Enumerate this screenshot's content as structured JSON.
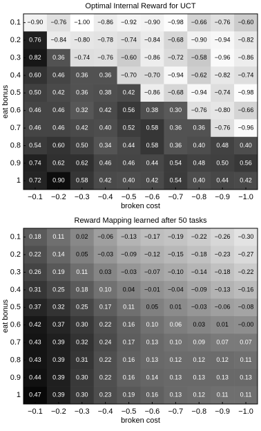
{
  "chart_data": [
    {
      "type": "heatmap",
      "title": "Optimal Internal Reward for UCT",
      "xlabel": "broken cost",
      "ylabel": "eat bonus",
      "categories": [
        "−0.1",
        "−0.2",
        "−0.3",
        "−0.4",
        "−0.5",
        "−0.6",
        "−0.7",
        "−0.8",
        "−0.9",
        "−1.0"
      ],
      "y_categories": [
        "0.1",
        "0.2",
        "0.3",
        "0.4",
        "0.5",
        "0.6",
        "0.7",
        "0.8",
        "0.9",
        "1"
      ],
      "clim": [
        -1,
        1
      ],
      "values": [
        [
          -0.9,
          -0.76,
          -1.0,
          -0.86,
          -0.92,
          -0.9,
          -0.98,
          -0.66,
          -0.76,
          -0.6
        ],
        [
          0.76,
          -0.84,
          -0.8,
          -0.78,
          -0.74,
          -0.84,
          -0.68,
          -0.9,
          -0.94,
          -0.82
        ],
        [
          0.82,
          0.36,
          -0.74,
          -0.76,
          -0.6,
          -0.86,
          -0.72,
          -0.58,
          -0.96,
          -0.86
        ],
        [
          0.6,
          0.46,
          0.36,
          0.36,
          -0.7,
          -0.7,
          -0.94,
          -0.62,
          -0.82,
          -0.74
        ],
        [
          0.5,
          0.42,
          0.36,
          0.38,
          0.42,
          -0.86,
          -0.68,
          -0.94,
          -0.74,
          -0.98
        ],
        [
          0.46,
          0.46,
          0.32,
          0.42,
          0.56,
          0.38,
          0.3,
          -0.76,
          -0.8,
          -0.66
        ],
        [
          0.46,
          0.46,
          0.42,
          0.4,
          0.52,
          0.58,
          0.36,
          0.36,
          -0.76,
          -0.96
        ],
        [
          0.54,
          0.6,
          0.5,
          0.34,
          0.44,
          0.58,
          0.36,
          0.4,
          0.48,
          0.4
        ],
        [
          0.74,
          0.62,
          0.62,
          0.46,
          0.46,
          0.44,
          0.54,
          0.48,
          0.5,
          0.56
        ],
        [
          0.72,
          0.9,
          0.58,
          0.42,
          0.4,
          0.42,
          0.54,
          0.4,
          0.44,
          0.42
        ]
      ],
      "value_labels": [
        [
          "−0.90",
          "−0.76",
          "−1.00",
          "−0.86",
          "−0.92",
          "−0.90",
          "−0.98",
          "−0.66",
          "−0.76",
          "−0.60"
        ],
        [
          "0.76",
          "−0.84",
          "−0.80",
          "−0.78",
          "−0.74",
          "−0.84",
          "−0.68",
          "−0.90",
          "−0.94",
          "−0.82"
        ],
        [
          "0.82",
          "0.36",
          "−0.74",
          "−0.76",
          "−0.60",
          "−0.86",
          "−0.72",
          "−0.58",
          "−0.96",
          "−0.86"
        ],
        [
          "0.60",
          "0.46",
          "0.36",
          "0.36",
          "−0.70",
          "−0.70",
          "−0.94",
          "−0.62",
          "−0.82",
          "−0.74"
        ],
        [
          "0.50",
          "0.42",
          "0.36",
          "0.38",
          "0.42",
          "−0.86",
          "−0.68",
          "−0.94",
          "−0.74",
          "−0.98"
        ],
        [
          "0.46",
          "0.46",
          "0.32",
          "0.42",
          "0.56",
          "0.38",
          "0.30",
          "−0.76",
          "−0.80",
          "−0.66"
        ],
        [
          "0.46",
          "0.46",
          "0.42",
          "0.40",
          "0.52",
          "0.58",
          "0.36",
          "0.36",
          "−0.76",
          "−0.96"
        ],
        [
          "0.54",
          "0.60",
          "0.50",
          "0.34",
          "0.44",
          "0.58",
          "0.36",
          "0.40",
          "0.48",
          "0.40"
        ],
        [
          "0.74",
          "0.62",
          "0.62",
          "0.46",
          "0.46",
          "0.44",
          "0.54",
          "0.48",
          "0.50",
          "0.56"
        ],
        [
          "0.72",
          "0.90",
          "0.58",
          "0.42",
          "0.40",
          "0.42",
          "0.54",
          "0.40",
          "0.44",
          "0.42"
        ]
      ]
    },
    {
      "type": "heatmap",
      "title": "Reward Mapping learned after 50 tasks",
      "xlabel": "broken cost",
      "ylabel": "eat bonus",
      "categories": [
        "−0.1",
        "−0.2",
        "−0.3",
        "−0.4",
        "−0.5",
        "−0.6",
        "−0.7",
        "−0.8",
        "−0.9",
        "−1.0"
      ],
      "y_categories": [
        "0.1",
        "0.2",
        "0.3",
        "0.4",
        "0.5",
        "0.6",
        "0.7",
        "0.8",
        "0.9",
        "1"
      ],
      "clim": [
        -0.4,
        0.5
      ],
      "values": [
        [
          0.18,
          0.11,
          0.02,
          -0.06,
          -0.13,
          -0.17,
          -0.19,
          -0.22,
          -0.26,
          -0.3
        ],
        [
          0.22,
          0.14,
          0.05,
          -0.03,
          -0.09,
          -0.12,
          -0.15,
          -0.18,
          -0.23,
          -0.27
        ],
        [
          0.26,
          0.19,
          0.11,
          0.03,
          -0.03,
          -0.07,
          -0.1,
          -0.14,
          -0.18,
          -0.22
        ],
        [
          0.31,
          0.25,
          0.18,
          0.1,
          0.04,
          -0.01,
          -0.04,
          -0.09,
          -0.13,
          -0.16
        ],
        [
          0.37,
          0.32,
          0.25,
          0.17,
          0.11,
          0.05,
          0.01,
          -0.03,
          -0.06,
          -0.08
        ],
        [
          0.42,
          0.37,
          0.3,
          0.22,
          0.16,
          0.1,
          0.06,
          0.03,
          0.01,
          -0.0
        ],
        [
          0.43,
          0.39,
          0.32,
          0.24,
          0.17,
          0.13,
          0.1,
          0.09,
          0.07,
          0.07
        ],
        [
          0.43,
          0.39,
          0.31,
          0.22,
          0.16,
          0.13,
          0.12,
          0.12,
          0.12,
          0.11
        ],
        [
          0.44,
          0.39,
          0.3,
          0.22,
          0.16,
          0.14,
          0.13,
          0.13,
          0.13,
          0.13
        ],
        [
          0.47,
          0.39,
          0.3,
          0.23,
          0.19,
          0.16,
          0.13,
          0.12,
          0.11,
          0.11
        ]
      ],
      "value_labels": [
        [
          "0.18",
          "0.11",
          "0.02",
          "−0.06",
          "−0.13",
          "−0.17",
          "−0.19",
          "−0.22",
          "−0.26",
          "−0.30"
        ],
        [
          "0.22",
          "0.14",
          "0.05",
          "−0.03",
          "−0.09",
          "−0.12",
          "−0.15",
          "−0.18",
          "−0.23",
          "−0.27"
        ],
        [
          "0.26",
          "0.19",
          "0.11",
          "0.03",
          "−0.03",
          "−0.07",
          "−0.10",
          "−0.14",
          "−0.18",
          "−0.22"
        ],
        [
          "0.31",
          "0.25",
          "0.18",
          "0.10",
          "0.04",
          "−0.01",
          "−0.04",
          "−0.09",
          "−0.13",
          "−0.16"
        ],
        [
          "0.37",
          "0.32",
          "0.25",
          "0.17",
          "0.11",
          "0.05",
          "0.01",
          "−0.03",
          "−0.06",
          "−0.08"
        ],
        [
          "0.42",
          "0.37",
          "0.30",
          "0.22",
          "0.16",
          "0.10",
          "0.06",
          "0.03",
          "0.01",
          "−0.00"
        ],
        [
          "0.43",
          "0.39",
          "0.32",
          "0.24",
          "0.17",
          "0.13",
          "0.10",
          "0.09",
          "0.07",
          "0.07"
        ],
        [
          "0.43",
          "0.39",
          "0.31",
          "0.22",
          "0.16",
          "0.13",
          "0.12",
          "0.12",
          "0.12",
          "0.11"
        ],
        [
          "0.44",
          "0.39",
          "0.30",
          "0.22",
          "0.16",
          "0.14",
          "0.13",
          "0.13",
          "0.13",
          "0.13"
        ],
        [
          "0.47",
          "0.39",
          "0.30",
          "0.23",
          "0.19",
          "0.16",
          "0.13",
          "0.12",
          "0.11",
          "0.11"
        ]
      ]
    }
  ]
}
